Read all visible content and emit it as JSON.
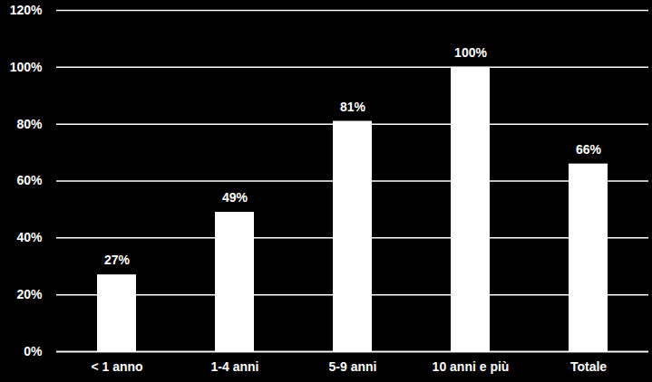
{
  "chart_data": {
    "type": "bar",
    "categories": [
      "< 1 anno",
      "1-4 anni",
      "5-9 anni",
      "10 anni e più",
      "Totale"
    ],
    "values": [
      27,
      49,
      81,
      100,
      66
    ],
    "value_labels": [
      "27%",
      "49%",
      "81%",
      "100%",
      "66%"
    ],
    "color": "#ffffff",
    "ylim": [
      0,
      120
    ],
    "yticks": [
      {
        "value": 0,
        "label": "0%"
      },
      {
        "value": 20,
        "label": "20%"
      },
      {
        "value": 40,
        "label": "40%"
      },
      {
        "value": 60,
        "label": "60%"
      },
      {
        "value": 80,
        "label": "80%"
      },
      {
        "value": 100,
        "label": "100%"
      },
      {
        "value": 120,
        "label": "120%"
      }
    ],
    "grid": true,
    "data_labels": true
  }
}
